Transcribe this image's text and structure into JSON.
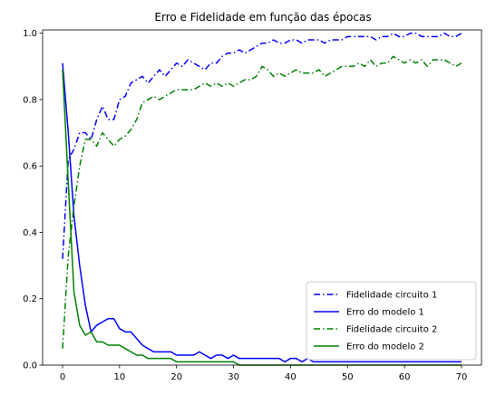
{
  "chart_data": {
    "type": "line",
    "title": "Erro e Fidelidade em função das épocas",
    "xlabel": "",
    "ylabel": "",
    "xlim": [
      -3.5,
      73.5
    ],
    "ylim": [
      0.0,
      1.01
    ],
    "xticks": [
      0,
      10,
      20,
      30,
      40,
      50,
      60,
      70
    ],
    "yticks": [
      0.0,
      0.2,
      0.4,
      0.6,
      0.8,
      1.0
    ],
    "xtick_labels": [
      "0",
      "10",
      "20",
      "30",
      "40",
      "50",
      "60",
      "70"
    ],
    "ytick_labels": [
      "0.0",
      "0.2",
      "0.4",
      "0.6",
      "0.8",
      "1.0"
    ],
    "grid": false,
    "legend_position": "lower-right",
    "series": [
      {
        "name": "Fidelidade circuito 1",
        "color": "#0000ff",
        "style": "dashdot",
        "x": [
          0,
          1,
          2,
          3,
          4,
          5,
          6,
          7,
          8,
          9,
          10,
          11,
          12,
          13,
          14,
          15,
          16,
          17,
          18,
          19,
          20,
          21,
          22,
          23,
          24,
          25,
          26,
          27,
          28,
          29,
          30,
          31,
          32,
          33,
          34,
          35,
          36,
          37,
          38,
          39,
          40,
          41,
          42,
          43,
          44,
          45,
          46,
          47,
          48,
          49,
          50,
          51,
          52,
          53,
          54,
          55,
          56,
          57,
          58,
          59,
          60,
          61,
          62,
          63,
          64,
          65,
          66,
          67,
          68,
          69,
          70
        ],
        "values": [
          0.32,
          0.62,
          0.65,
          0.7,
          0.7,
          0.68,
          0.74,
          0.78,
          0.74,
          0.74,
          0.8,
          0.81,
          0.85,
          0.86,
          0.87,
          0.85,
          0.87,
          0.89,
          0.87,
          0.89,
          0.91,
          0.9,
          0.92,
          0.91,
          0.9,
          0.89,
          0.91,
          0.91,
          0.93,
          0.94,
          0.94,
          0.95,
          0.94,
          0.95,
          0.96,
          0.97,
          0.97,
          0.98,
          0.97,
          0.97,
          0.98,
          0.98,
          0.97,
          0.98,
          0.98,
          0.98,
          0.97,
          0.98,
          0.98,
          0.98,
          0.99,
          0.99,
          0.99,
          0.99,
          0.99,
          0.98,
          0.99,
          0.99,
          1.0,
          0.99,
          0.99,
          1.0,
          1.0,
          0.99,
          0.99,
          0.99,
          0.99,
          1.0,
          0.99,
          0.99,
          1.0
        ]
      },
      {
        "name": "Erro do modelo 1",
        "color": "#0000ff",
        "style": "solid",
        "x": [
          0,
          1,
          2,
          3,
          4,
          5,
          6,
          7,
          8,
          9,
          10,
          11,
          12,
          13,
          14,
          15,
          16,
          17,
          18,
          19,
          20,
          21,
          22,
          23,
          24,
          25,
          26,
          27,
          28,
          29,
          30,
          31,
          32,
          33,
          34,
          35,
          36,
          37,
          38,
          39,
          40,
          41,
          42,
          43,
          44,
          45,
          46,
          47,
          48,
          49,
          50,
          51,
          52,
          53,
          54,
          55,
          56,
          57,
          58,
          59,
          60,
          61,
          62,
          63,
          64,
          65,
          66,
          67,
          68,
          69,
          70
        ],
        "values": [
          0.91,
          0.7,
          0.45,
          0.3,
          0.18,
          0.1,
          0.12,
          0.13,
          0.14,
          0.14,
          0.11,
          0.1,
          0.1,
          0.08,
          0.06,
          0.05,
          0.04,
          0.04,
          0.04,
          0.04,
          0.03,
          0.03,
          0.03,
          0.03,
          0.04,
          0.03,
          0.02,
          0.03,
          0.03,
          0.02,
          0.03,
          0.02,
          0.02,
          0.02,
          0.02,
          0.02,
          0.02,
          0.02,
          0.02,
          0.01,
          0.02,
          0.02,
          0.01,
          0.02,
          0.01,
          0.01,
          0.01,
          0.01,
          0.01,
          0.01,
          0.01,
          0.01,
          0.01,
          0.01,
          0.01,
          0.01,
          0.01,
          0.01,
          0.01,
          0.01,
          0.01,
          0.01,
          0.01,
          0.01,
          0.01,
          0.01,
          0.01,
          0.01,
          0.01,
          0.01,
          0.01
        ]
      },
      {
        "name": "Fidelidade circuito 2",
        "color": "#008000",
        "style": "dashdot",
        "x": [
          0,
          1,
          2,
          3,
          4,
          5,
          6,
          7,
          8,
          9,
          10,
          11,
          12,
          13,
          14,
          15,
          16,
          17,
          18,
          19,
          20,
          21,
          22,
          23,
          24,
          25,
          26,
          27,
          28,
          29,
          30,
          31,
          32,
          33,
          34,
          35,
          36,
          37,
          38,
          39,
          40,
          41,
          42,
          43,
          44,
          45,
          46,
          47,
          48,
          49,
          50,
          51,
          52,
          53,
          54,
          55,
          56,
          57,
          58,
          59,
          60,
          61,
          62,
          63,
          64,
          65,
          66,
          67,
          68,
          69,
          70
        ],
        "values": [
          0.05,
          0.33,
          0.48,
          0.6,
          0.68,
          0.68,
          0.66,
          0.7,
          0.68,
          0.66,
          0.68,
          0.69,
          0.71,
          0.74,
          0.79,
          0.8,
          0.81,
          0.8,
          0.81,
          0.82,
          0.83,
          0.83,
          0.83,
          0.83,
          0.84,
          0.85,
          0.84,
          0.85,
          0.84,
          0.85,
          0.84,
          0.85,
          0.86,
          0.86,
          0.87,
          0.9,
          0.89,
          0.87,
          0.88,
          0.87,
          0.88,
          0.89,
          0.88,
          0.88,
          0.88,
          0.89,
          0.87,
          0.88,
          0.89,
          0.9,
          0.9,
          0.9,
          0.91,
          0.9,
          0.92,
          0.9,
          0.91,
          0.91,
          0.93,
          0.92,
          0.91,
          0.92,
          0.91,
          0.92,
          0.9,
          0.92,
          0.92,
          0.92,
          0.91,
          0.9,
          0.91
        ]
      },
      {
        "name": "Erro do modelo 2",
        "color": "#008000",
        "style": "solid",
        "x": [
          0,
          1,
          2,
          3,
          4,
          5,
          6,
          7,
          8,
          9,
          10,
          11,
          12,
          13,
          14,
          15,
          16,
          17,
          18,
          19,
          20,
          21,
          22,
          23,
          24,
          25,
          26,
          27,
          28,
          29,
          30,
          31,
          32,
          33,
          34,
          35,
          36,
          37,
          38,
          39,
          40,
          41,
          42,
          43,
          44,
          45,
          46,
          47,
          48,
          49,
          50,
          51,
          52,
          53,
          54,
          55,
          56,
          57,
          58,
          59,
          60,
          61,
          62,
          63,
          64,
          65,
          66,
          67,
          68,
          69,
          70
        ],
        "values": [
          0.89,
          0.55,
          0.22,
          0.12,
          0.09,
          0.1,
          0.07,
          0.07,
          0.06,
          0.06,
          0.06,
          0.05,
          0.04,
          0.03,
          0.03,
          0.02,
          0.02,
          0.02,
          0.02,
          0.02,
          0.01,
          0.01,
          0.01,
          0.01,
          0.01,
          0.01,
          0.01,
          0.01,
          0.01,
          0.01,
          0.01,
          0.0,
          0.0,
          0.0,
          0.0,
          0.0,
          0.0,
          0.0,
          0.0,
          0.0,
          0.0,
          0.0,
          0.0,
          0.0,
          0.0,
          0.0,
          0.0,
          0.0,
          0.0,
          0.0,
          0.0,
          0.0,
          0.0,
          0.0,
          0.0,
          0.0,
          0.0,
          0.0,
          0.0,
          0.0,
          0.0,
          0.0,
          0.0,
          0.0,
          0.0,
          0.0,
          0.0,
          0.0,
          0.0,
          0.0,
          0.0
        ]
      }
    ]
  }
}
